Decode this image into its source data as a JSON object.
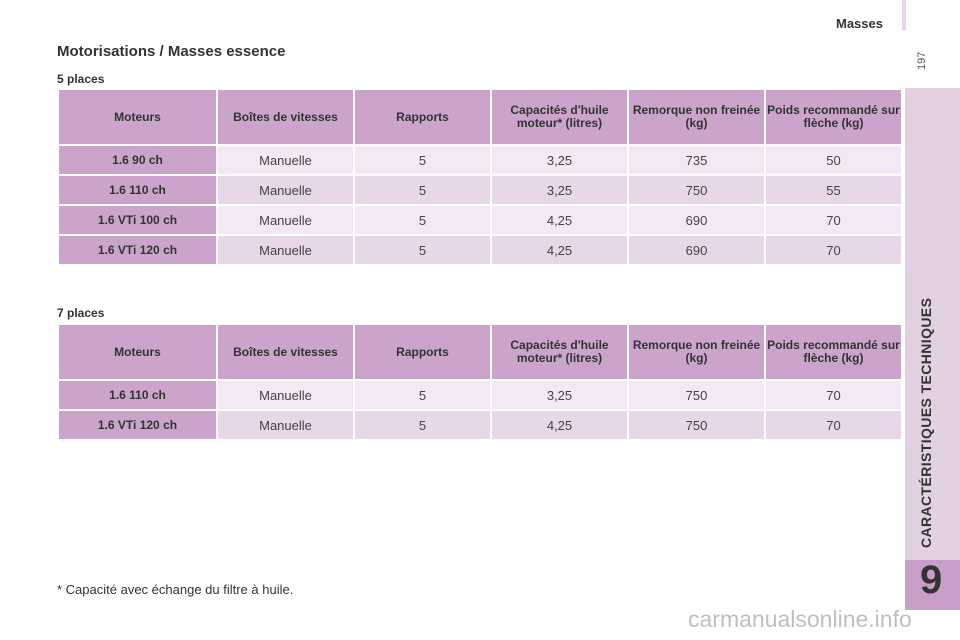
{
  "header": {
    "title": "Masses",
    "page_number": "197"
  },
  "side_tab": {
    "label": "CARACTÉRISTIQUES TECHNIQUES",
    "chapter": "9"
  },
  "section_title": "Motorisations / Masses essence",
  "columns": [
    "Moteurs",
    "Boîtes de vitesses",
    "Rapports",
    "Capacités d'huile moteur* (litres)",
    "Remorque non freinée (kg)",
    "Poids recommandé sur flèche (kg)"
  ],
  "tables": [
    {
      "title": "5 places",
      "rows": [
        [
          "1.6 90 ch",
          "Manuelle",
          "5",
          "3,25",
          "735",
          "50"
        ],
        [
          "1.6 110 ch",
          "Manuelle",
          "5",
          "3,25",
          "750",
          "55"
        ],
        [
          "1.6 VTi 100 ch",
          "Manuelle",
          "5",
          "4,25",
          "690",
          "70"
        ],
        [
          "1.6 VTi 120 ch",
          "Manuelle",
          "5",
          "4,25",
          "690",
          "70"
        ]
      ]
    },
    {
      "title": "7 places",
      "rows": [
        [
          "1.6 110 ch",
          "Manuelle",
          "5",
          "3,25",
          "750",
          "70"
        ],
        [
          "1.6 VTi 120 ch",
          "Manuelle",
          "5",
          "4,25",
          "750",
          "70"
        ]
      ]
    }
  ],
  "footnote": "* Capacité avec échange du filtre à huile.",
  "watermark": "carmanualsonline.info"
}
